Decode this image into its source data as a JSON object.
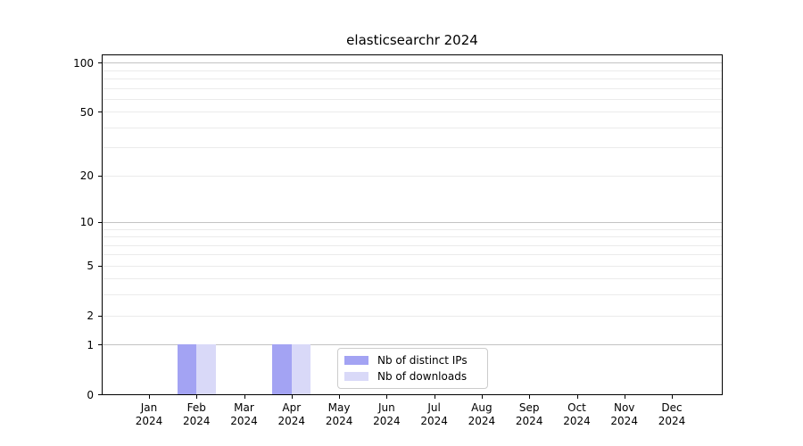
{
  "chart_data": {
    "type": "bar",
    "title": "elasticsearchr 2024",
    "categories": [
      "Jan",
      "Feb",
      "Mar",
      "Apr",
      "May",
      "Jun",
      "Jul",
      "Aug",
      "Sep",
      "Oct",
      "Nov",
      "Dec"
    ],
    "x_tick_year": "2024",
    "series": [
      {
        "name": "Nb of distinct IPs",
        "color": "#a3a3f3",
        "values": [
          0,
          1,
          0,
          1,
          0,
          0,
          0,
          0,
          0,
          0,
          0,
          0
        ]
      },
      {
        "name": "Nb of downloads",
        "color": "#d9d9f8",
        "values": [
          0,
          1,
          0,
          1,
          0,
          0,
          0,
          0,
          0,
          0,
          0,
          0
        ]
      }
    ],
    "y_axis": {
      "scale": "log1p",
      "ylim": [
        0,
        111
      ],
      "tick_values": [
        0,
        1,
        2,
        5,
        10,
        20,
        50,
        100
      ],
      "major_gridlines": [
        1,
        10,
        100
      ],
      "minor_gridlines": [
        2,
        3,
        4,
        5,
        6,
        7,
        8,
        9,
        20,
        30,
        40,
        50,
        60,
        70,
        80,
        90
      ]
    },
    "legend": {
      "entries": [
        "Nb of distinct IPs",
        "Nb of downloads"
      ],
      "position": "inside-bottom-center"
    },
    "grid": "horizontal",
    "colors": {
      "grid_major": "#c3c3c3",
      "grid_minor": "#ebebeb",
      "axis": "#000000",
      "background": "#ffffff"
    }
  }
}
